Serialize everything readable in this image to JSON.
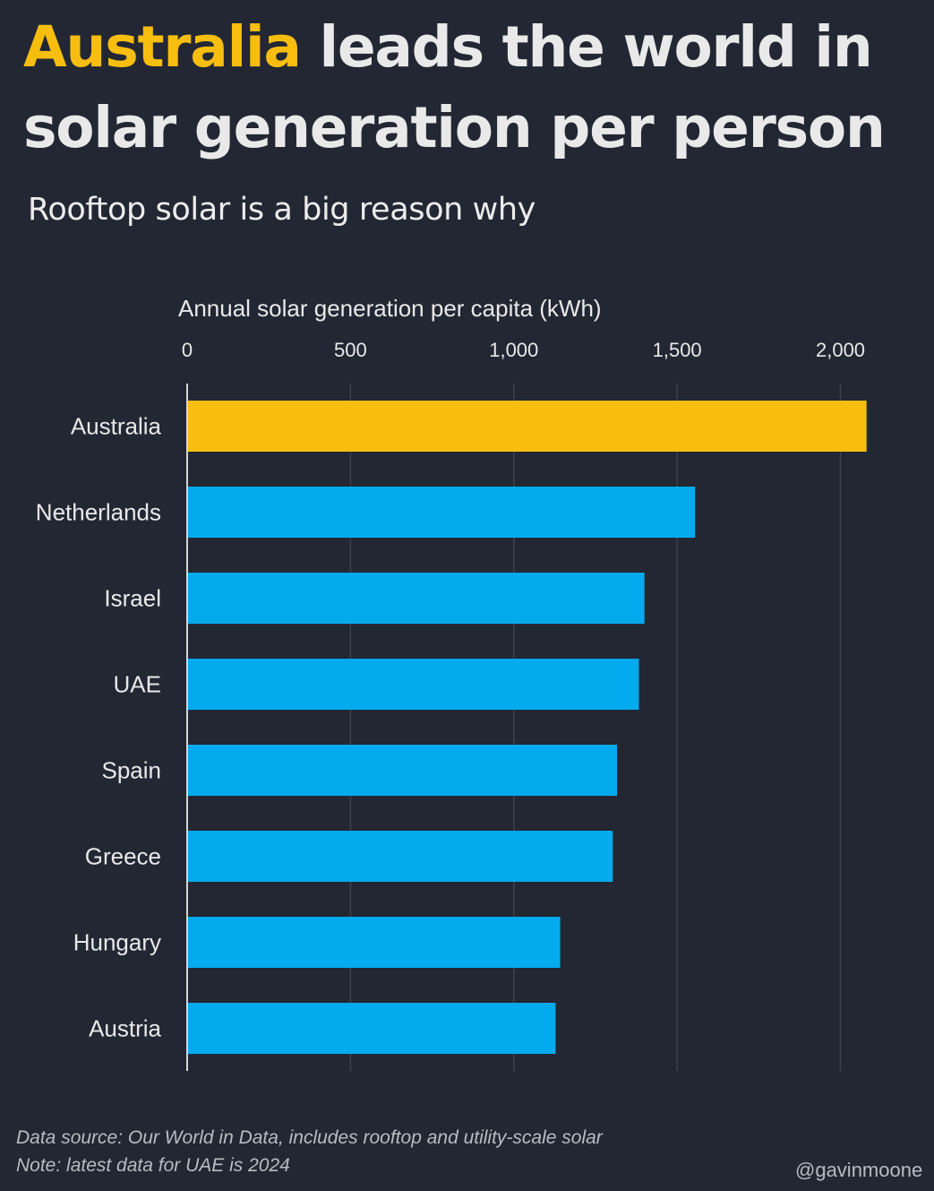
{
  "header": {
    "title_highlight": "Australia",
    "title_line1_rest": " leads the world in",
    "title_line2": "solar generation per person",
    "subtitle": "Rooftop solar is a big reason why"
  },
  "footer": {
    "source": "Data source: Our World in Data, includes rooftop and utility-scale solar",
    "note": "Note: latest data for UAE is 2024",
    "handle": "@gavinmoone"
  },
  "colors": {
    "background": "#222733",
    "highlight": "#f7be10",
    "bar": "#04aaee",
    "text": "#e9e9e9"
  },
  "chart_data": {
    "type": "bar",
    "orientation": "horizontal",
    "xlabel": "Annual solar generation per capita (kWh)",
    "xlim": [
      0,
      2100
    ],
    "xticks": [
      0,
      500,
      1000,
      1500,
      2000
    ],
    "xtick_labels": [
      "0",
      "500",
      "1,000",
      "1,500",
      "2,000"
    ],
    "grid": true,
    "categories": [
      "Australia",
      "Netherlands",
      "Israel",
      "UAE",
      "Spain",
      "Greece",
      "Hungary",
      "Austria"
    ],
    "values": [
      2080,
      1555,
      1400,
      1383,
      1316,
      1303,
      1142,
      1128
    ],
    "highlight_category": "Australia"
  }
}
